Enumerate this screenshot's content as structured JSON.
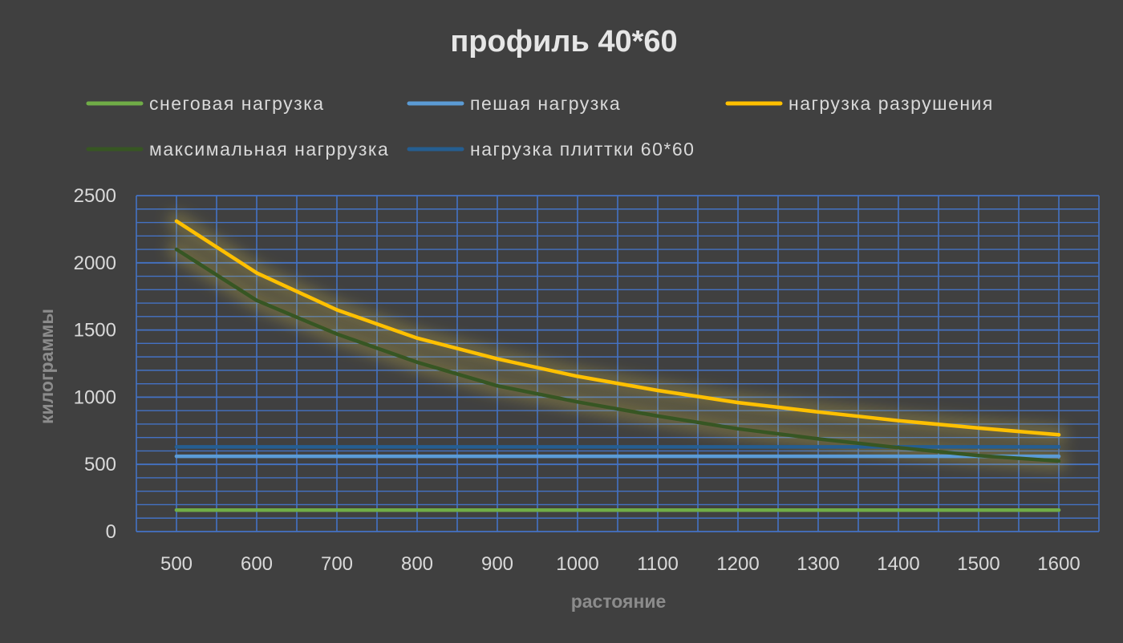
{
  "chart_data": {
    "type": "line",
    "title": "профиль 40*60",
    "xlabel": "растояние",
    "ylabel": "килограммы",
    "x": [
      500,
      600,
      700,
      800,
      900,
      1000,
      1100,
      1200,
      1300,
      1400,
      1500,
      1600
    ],
    "ylim": [
      0,
      2500
    ],
    "yticks": [
      0,
      500,
      1000,
      1500,
      2000,
      2500
    ],
    "grid": true,
    "legend_position": "top",
    "series": [
      {
        "name": "снеговая нагрузка",
        "color": "#70ad47",
        "values": [
          160,
          160,
          160,
          160,
          160,
          160,
          160,
          160,
          160,
          160,
          160,
          160
        ]
      },
      {
        "name": "пешая нагрузка",
        "color": "#5b9bd5",
        "values": [
          560,
          560,
          560,
          560,
          560,
          560,
          560,
          560,
          560,
          560,
          560,
          560
        ]
      },
      {
        "name": "нагрузка разрушения",
        "color": "#ffc000",
        "values": [
          2310,
          1925,
          1650,
          1440,
          1285,
          1155,
          1050,
          960,
          890,
          825,
          770,
          720
        ]
      },
      {
        "name": "максимальная нагррузка",
        "color": "#375623",
        "values": [
          2100,
          1720,
          1470,
          1260,
          1085,
          965,
          860,
          765,
          690,
          625,
          565,
          525
        ]
      },
      {
        "name": "нагрузка плиттки 60*60",
        "color": "#255e91",
        "values": [
          630,
          630,
          630,
          630,
          630,
          630,
          630,
          630,
          630,
          630,
          630,
          630
        ]
      }
    ]
  }
}
